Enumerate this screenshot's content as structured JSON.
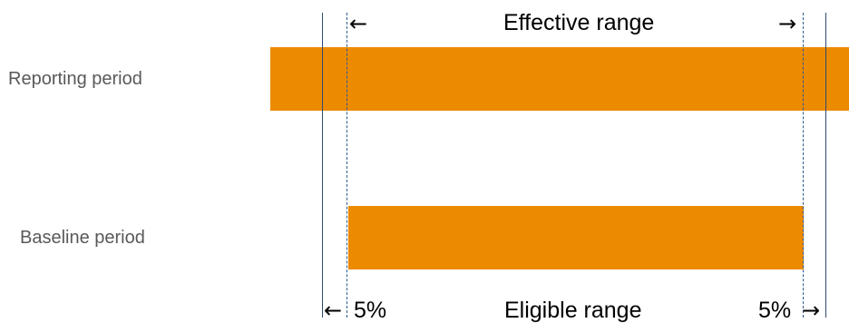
{
  "rows": {
    "reporting_label": "Reporting period",
    "baseline_label": "Baseline period"
  },
  "ranges": {
    "effective_label": "Effective range",
    "eligible_label": "Eligible range",
    "left_margin_label": "5%",
    "right_margin_label": "5%"
  },
  "colors": {
    "bar": "#ec8a00",
    "solid_line": "#2f4a6e",
    "dashed_line": "#2f5a8e",
    "label_text": "#595959"
  },
  "icons": {
    "arrow_left": "←",
    "arrow_right": "→"
  }
}
